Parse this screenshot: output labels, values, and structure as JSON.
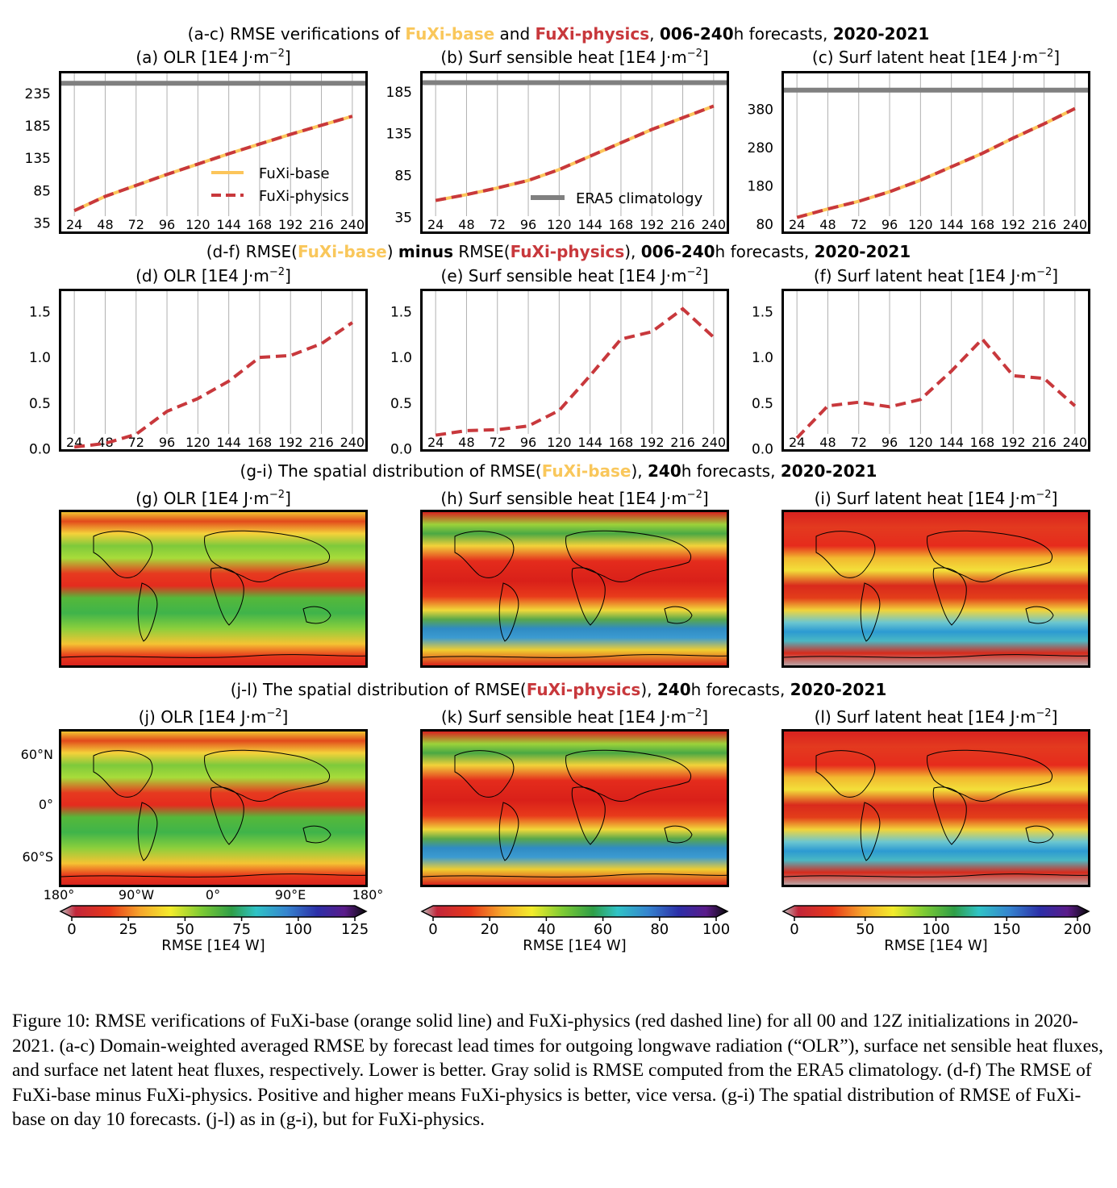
{
  "titles": {
    "row_ac": {
      "pre": "(a-c) RMSE verifications of ",
      "base": "FuXi-base",
      "mid": " and ",
      "phys": "FuXi-physics",
      "mid2": ", ",
      "bold1": "006-240",
      "mid3": "h forecasts, ",
      "bold2": "2020-2021"
    },
    "row_df": {
      "pre": "(d-f) RMSE(",
      "base": "FuXi-base",
      "mid": ") ",
      "bold0": "minus",
      "mid1": " RMSE(",
      "phys": "FuXi-physics",
      "mid2": "), ",
      "bold1": "006-240",
      "mid3": "h forecasts, ",
      "bold2": "2020-2021"
    },
    "row_gi": {
      "pre": "(g-i) The spatial distribution of RMSE(",
      "base": "FuXi-base",
      "mid": "), ",
      "bold1": "240",
      "mid3": "h forecasts, ",
      "bold2": "2020-2021"
    },
    "row_jl": {
      "pre": "(j-l) The spatial distribution of RMSE(",
      "phys": "FuXi-physics",
      "mid": "), ",
      "bold1": "240",
      "mid3": "h forecasts, ",
      "bold2": "2020-2021"
    }
  },
  "panels": {
    "a": "(a) OLR [1E4 J·m",
    "b": "(b) Surf sensible heat [1E4 J·m",
    "c": "(c) Surf latent heat [1E4 J·m",
    "d": "(d) OLR [1E4 J·m",
    "e": "(e) Surf sensible heat [1E4 J·m",
    "f": "(f) Surf latent heat [1E4 J·m",
    "g": "(g) OLR [1E4 J·m",
    "h": "(h) Surf sensible heat [1E4 J·m",
    "i": "(i) Surf latent heat [1E4 J·m",
    "j": "(j) OLR [1E4 J·m",
    "k": "(k) Surf sensible heat [1E4 J·m",
    "l": "(l) Surf latent heat [1E4 J·m",
    "unit_close": "]",
    "sup": "−2"
  },
  "legend": {
    "base": "FuXi-base",
    "phys": "FuXi-physics",
    "clim": "ERA5 climatology"
  },
  "colors": {
    "base": "#fcc55a",
    "phys": "#c8383c",
    "clim": "#808080",
    "grid": "#b0b0b0"
  },
  "chart_data": [
    {
      "id": "a",
      "type": "line",
      "x": [
        24,
        48,
        72,
        96,
        120,
        144,
        168,
        192,
        216,
        240
      ],
      "xticks": [
        "24",
        "48",
        "72",
        "96",
        "120",
        "144",
        "168",
        "192",
        "216",
        "240"
      ],
      "yticks": [
        35,
        85,
        135,
        185,
        235
      ],
      "ylim": [
        18,
        270
      ],
      "series": [
        {
          "name": "FuXi-base",
          "values": [
            54,
            76,
            93,
            110,
            126,
            142,
            157,
            172,
            186,
            200
          ]
        },
        {
          "name": "FuXi-physics",
          "values": [
            54,
            76,
            93,
            110,
            126,
            142,
            157,
            172,
            186,
            200
          ]
        },
        {
          "name": "ERA5 climatology",
          "values": [
            251,
            251,
            251,
            251,
            251,
            251,
            251,
            251,
            251,
            251
          ]
        }
      ]
    },
    {
      "id": "b",
      "type": "line",
      "x": [
        24,
        48,
        72,
        96,
        120,
        144,
        168,
        192,
        216,
        240
      ],
      "xticks": [
        "24",
        "48",
        "72",
        "96",
        "120",
        "144",
        "168",
        "192",
        "216",
        "240"
      ],
      "yticks": [
        35,
        85,
        135,
        185
      ],
      "ylim": [
        15,
        210
      ],
      "series": [
        {
          "name": "FuXi-base",
          "values": [
            55,
            62,
            70,
            79,
            92,
            108,
            124,
            140,
            154,
            168
          ]
        },
        {
          "name": "FuXi-physics",
          "values": [
            55,
            62,
            70,
            79,
            92,
            108,
            124,
            140,
            154,
            168
          ]
        },
        {
          "name": "ERA5 climatology",
          "values": [
            196,
            196,
            196,
            196,
            196,
            196,
            196,
            196,
            196,
            196
          ]
        }
      ]
    },
    {
      "id": "c",
      "type": "line",
      "x": [
        24,
        48,
        72,
        96,
        120,
        144,
        168,
        192,
        216,
        240
      ],
      "xticks": [
        "24",
        "48",
        "72",
        "96",
        "120",
        "144",
        "168",
        "192",
        "216",
        "240"
      ],
      "yticks": [
        80,
        180,
        280,
        380
      ],
      "ylim": [
        55,
        480
      ],
      "series": [
        {
          "name": "FuXi-base",
          "values": [
            98,
            120,
            140,
            165,
            195,
            230,
            265,
            305,
            342,
            382
          ]
        },
        {
          "name": "FuXi-physics",
          "values": [
            98,
            120,
            140,
            165,
            195,
            230,
            265,
            305,
            342,
            382
          ]
        },
        {
          "name": "ERA5 climatology",
          "values": [
            430,
            430,
            430,
            430,
            430,
            430,
            430,
            430,
            430,
            430
          ]
        }
      ]
    },
    {
      "id": "d",
      "type": "line",
      "x": [
        24,
        48,
        72,
        96,
        120,
        144,
        168,
        192,
        216,
        240
      ],
      "xticks": [
        "24",
        "48",
        "72",
        "96",
        "120",
        "144",
        "168",
        "192",
        "216",
        "240"
      ],
      "yticks": [
        0.0,
        0.5,
        1.0,
        1.5
      ],
      "ylim": [
        -0.03,
        1.75
      ],
      "series": [
        {
          "name": "FuXi-physics",
          "values": [
            0.02,
            0.06,
            0.16,
            0.41,
            0.55,
            0.74,
            1.0,
            1.02,
            1.15,
            1.38
          ]
        }
      ]
    },
    {
      "id": "e",
      "type": "line",
      "x": [
        24,
        48,
        72,
        96,
        120,
        144,
        168,
        192,
        216,
        240
      ],
      "xticks": [
        "24",
        "48",
        "72",
        "96",
        "120",
        "144",
        "168",
        "192",
        "216",
        "240"
      ],
      "yticks": [
        0.0,
        0.5,
        1.0,
        1.5
      ],
      "ylim": [
        -0.03,
        1.75
      ],
      "series": [
        {
          "name": "FuXi-physics",
          "values": [
            0.15,
            0.2,
            0.21,
            0.25,
            0.42,
            0.8,
            1.2,
            1.28,
            1.53,
            1.22
          ]
        }
      ]
    },
    {
      "id": "f",
      "type": "line",
      "x": [
        24,
        48,
        72,
        96,
        120,
        144,
        168,
        192,
        216,
        240
      ],
      "xticks": [
        "24",
        "48",
        "72",
        "96",
        "120",
        "144",
        "168",
        "192",
        "216",
        "240"
      ],
      "yticks": [
        0.0,
        0.5,
        1.0,
        1.5
      ],
      "ylim": [
        -0.03,
        1.75
      ],
      "series": [
        {
          "name": "FuXi-physics",
          "values": [
            0.12,
            0.47,
            0.51,
            0.46,
            0.54,
            0.85,
            1.2,
            0.8,
            0.77,
            0.47
          ]
        }
      ]
    }
  ],
  "map_axes": {
    "lat_ticks": [
      "60°N",
      "0°",
      "60°S"
    ],
    "lon_ticks": [
      "180°",
      "90°W",
      "0°",
      "90°E",
      "180°"
    ]
  },
  "colorbars": [
    {
      "ticks": [
        "0",
        "25",
        "50",
        "75",
        "100",
        "125"
      ],
      "max": 125,
      "label": "RMSE [1E4 W]"
    },
    {
      "ticks": [
        "0",
        "20",
        "40",
        "60",
        "80",
        "100"
      ],
      "max": 100,
      "label": "RMSE [1E4 W]"
    },
    {
      "ticks": [
        "0",
        "50",
        "100",
        "150",
        "200"
      ],
      "max": 200,
      "label": "RMSE [1E4 W]"
    }
  ],
  "caption": "Figure 10: RMSE verifications of FuXi-base (orange solid line) and FuXi-physics (red dashed line) for all 00 and 12Z initializations in 2020-2021. (a-c) Domain-weighted averaged RMSE by forecast lead times for outgoing longwave radiation (“OLR”), surface net sensible heat fluxes, and surface net latent heat fluxes, respectively. Lower is better. Gray solid is RMSE computed from the ERA5 climatology. (d-f) The RMSE of FuXi-base minus FuXi-physics. Positive and higher means FuXi-physics is better, vice versa. (g-i) The spatial distribution of RMSE of FuXi-base on day 10 forecasts. (j-l) as in (g-i), but for FuXi-physics."
}
